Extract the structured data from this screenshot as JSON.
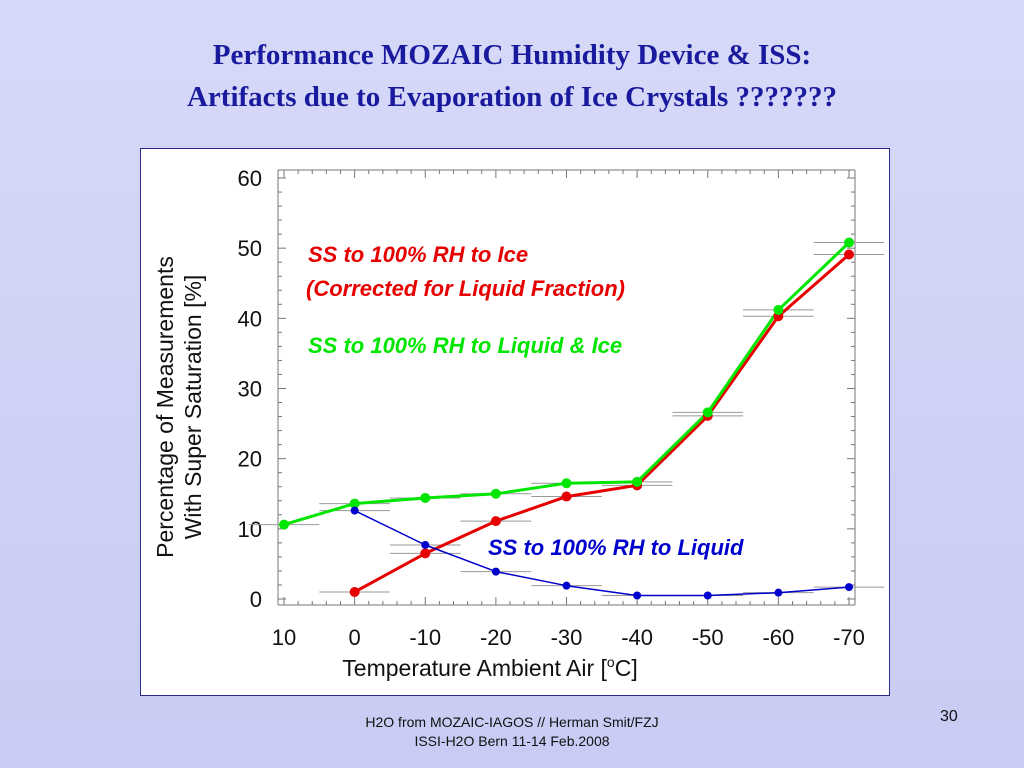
{
  "slide": {
    "title_line1": "Performance MOZAIC Humidity Device & ISS:",
    "title_line2": "Artifacts due to Evaporation of Ice Crystals ???????",
    "footer_line1": "H2O from MOZAIC-IAGOS // Herman Smit/FZJ",
    "footer_line2": "ISSI-H2O Bern 11-14 Feb.2008",
    "page_number": "30"
  },
  "chart_data": {
    "type": "line",
    "xlabel_main": "Temperature  Ambient Air  [",
    "xlabel_sup": "o",
    "xlabel_end": "C]",
    "ylabel_line1": "Percentage of Measurements",
    "ylabel_line2": "With Super Saturation [%]",
    "x_ticks": [
      10,
      0,
      -10,
      -20,
      -30,
      -40,
      -50,
      -60,
      -70
    ],
    "y_ticks": [
      0,
      10,
      20,
      30,
      40,
      50,
      60
    ],
    "xlim": [
      10,
      -70
    ],
    "ylim": [
      0,
      60
    ],
    "x_reversed": true,
    "grid": false,
    "colors": {
      "ice": "#e60000",
      "liquid_ice": "#00e600",
      "liquid": "#0000cc"
    },
    "series": [
      {
        "key": "ice",
        "name_line1": "SS to 100% RH to Ice",
        "name_line2": "(Corrected for Liquid Fraction)",
        "x": [
          0,
          -10,
          -20,
          -30,
          -40,
          -50,
          -60,
          -70
        ],
        "y": [
          1.0,
          6.5,
          11.1,
          14.6,
          16.2,
          26.1,
          40.3,
          49.1
        ]
      },
      {
        "key": "liquid_ice",
        "name_line1": "SS to 100% RH to Liquid & Ice",
        "x": [
          10,
          0,
          -10,
          -20,
          -30,
          -40,
          -50,
          -60,
          -70
        ],
        "y": [
          10.6,
          13.6,
          14.4,
          15.0,
          16.5,
          16.7,
          26.6,
          41.2,
          50.8
        ]
      },
      {
        "key": "liquid",
        "name_line1": "SS to 100% RH to Liquid",
        "x": [
          0,
          -10,
          -20,
          -30,
          -40,
          -50,
          -60,
          -70
        ],
        "y": [
          12.6,
          7.7,
          3.9,
          1.9,
          0.5,
          0.5,
          0.9,
          1.7
        ]
      }
    ]
  }
}
